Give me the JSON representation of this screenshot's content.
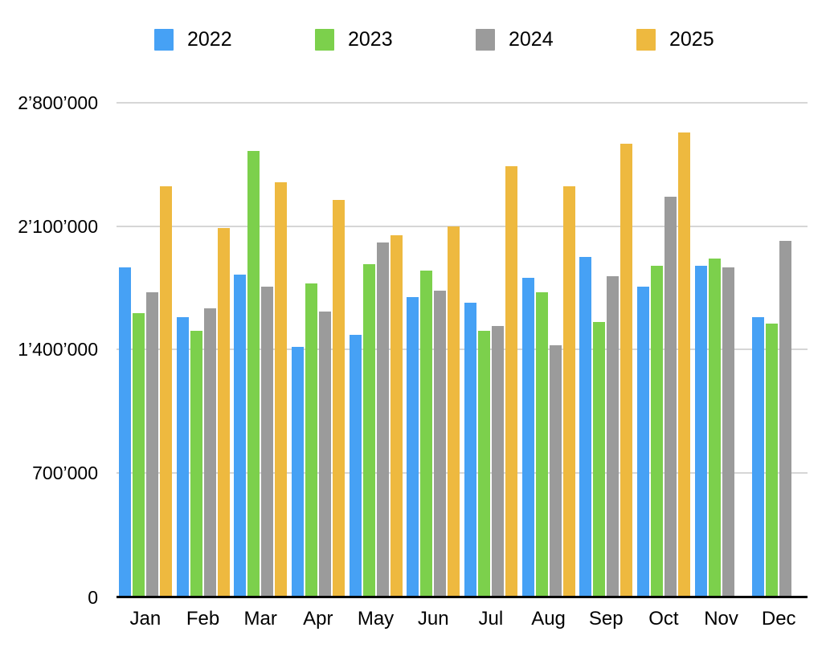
{
  "chart_data": {
    "type": "bar",
    "title": "",
    "xlabel": "",
    "ylabel": "",
    "categories": [
      "Jan",
      "Feb",
      "Mar",
      "Apr",
      "May",
      "Jun",
      "Jul",
      "Aug",
      "Sep",
      "Oct",
      "Nov",
      "Dec"
    ],
    "series": [
      {
        "name": "2022",
        "color": "#46a1f5",
        "values": [
          1870000,
          1590000,
          1830000,
          1420000,
          1490000,
          1700000,
          1670000,
          1810000,
          1930000,
          1760000,
          1880000,
          1590000
        ]
      },
      {
        "name": "2023",
        "color": "#7cd04c",
        "values": [
          1610000,
          1510000,
          2530000,
          1780000,
          1890000,
          1850000,
          1510000,
          1730000,
          1560000,
          1880000,
          1920000,
          1550000
        ]
      },
      {
        "name": "2024",
        "color": "#9b9b9b",
        "values": [
          1730000,
          1640000,
          1760000,
          1620000,
          2010000,
          1740000,
          1540000,
          1430000,
          1820000,
          2270000,
          1870000,
          2020000
        ]
      },
      {
        "name": "2025",
        "color": "#eeb93f",
        "values": [
          2330000,
          2090000,
          2350000,
          2250000,
          2050000,
          2100000,
          2440000,
          2330000,
          2570000,
          2630000,
          null,
          null
        ]
      }
    ],
    "ylim": [
      0,
      2800000
    ],
    "yticks": [
      {
        "value": 2800000,
        "label": "2’800’000"
      },
      {
        "value": 2100000,
        "label": "2’100’000"
      },
      {
        "value": 1400000,
        "label": "1’400’000"
      },
      {
        "value": 700000,
        "label": "700’000"
      },
      {
        "value": 0,
        "label": "0"
      }
    ],
    "grid": true,
    "legend_position": "top"
  },
  "style": {
    "background": "#ffffff",
    "grid_color": "#d6d6d6",
    "axis_color": "#000000",
    "text_color": "#000000"
  }
}
